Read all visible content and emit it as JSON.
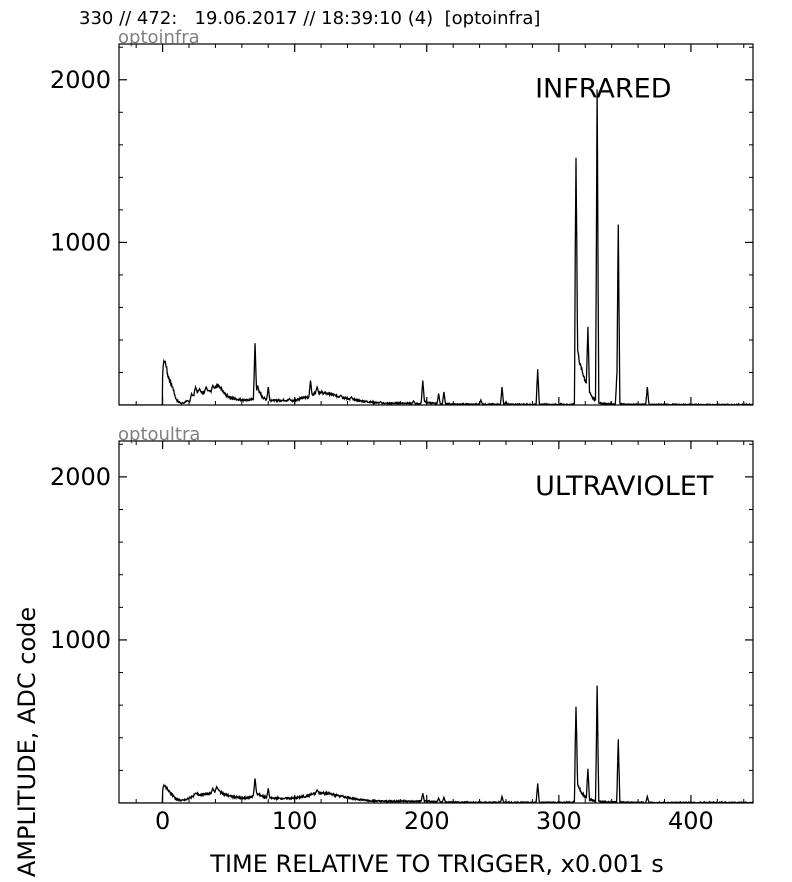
{
  "header": {
    "title": "330 // 472:   19.06.2017 // 18:39:10 (4)  [optoinfra]"
  },
  "chart_data": [
    {
      "type": "line",
      "panel_label": "optoinfra",
      "annotation": "INFRARED",
      "xlim": [
        -33,
        447
      ],
      "ylim": [
        0,
        2220
      ],
      "xticks": [
        0,
        100,
        200,
        300,
        400
      ],
      "yticks": [
        1000,
        2000
      ],
      "baseline": [
        [
          -33,
          0
        ],
        [
          -0.5,
          0
        ],
        [
          0,
          150
        ],
        [
          1,
          240
        ],
        [
          2,
          260
        ],
        [
          3,
          230
        ],
        [
          4,
          180
        ],
        [
          6,
          140
        ],
        [
          8,
          100
        ],
        [
          10,
          40
        ],
        [
          12,
          20
        ],
        [
          14,
          12
        ],
        [
          16,
          10
        ],
        [
          18,
          25
        ],
        [
          20,
          20
        ],
        [
          22,
          40
        ],
        [
          24,
          70
        ],
        [
          26,
          85
        ],
        [
          28,
          80
        ],
        [
          30,
          75
        ],
        [
          33,
          90
        ],
        [
          36,
          80
        ],
        [
          38,
          95
        ],
        [
          40,
          110
        ],
        [
          42,
          115
        ],
        [
          44,
          100
        ],
        [
          46,
          80
        ],
        [
          48,
          60
        ],
        [
          52,
          45
        ],
        [
          56,
          35
        ],
        [
          60,
          32
        ],
        [
          64,
          30
        ],
        [
          68,
          35
        ],
        [
          70,
          55
        ],
        [
          72,
          80
        ],
        [
          74,
          70
        ],
        [
          76,
          45
        ],
        [
          80,
          30
        ],
        [
          86,
          28
        ],
        [
          92,
          30
        ],
        [
          96,
          25
        ],
        [
          100,
          28
        ],
        [
          104,
          40
        ],
        [
          108,
          45
        ],
        [
          112,
          55
        ],
        [
          116,
          80
        ],
        [
          120,
          75
        ],
        [
          126,
          70
        ],
        [
          132,
          55
        ],
        [
          140,
          40
        ],
        [
          150,
          25
        ],
        [
          160,
          15
        ],
        [
          170,
          10
        ],
        [
          180,
          12
        ],
        [
          190,
          10
        ],
        [
          195,
          8
        ],
        [
          198,
          25
        ],
        [
          200,
          15
        ],
        [
          210,
          6
        ],
        [
          220,
          5
        ],
        [
          240,
          4
        ],
        [
          260,
          4
        ],
        [
          280,
          3
        ],
        [
          300,
          3
        ],
        [
          310,
          3
        ],
        [
          312,
          10
        ],
        [
          313,
          430
        ],
        [
          314,
          350
        ],
        [
          316,
          250
        ],
        [
          318,
          200
        ],
        [
          320,
          150
        ],
        [
          322,
          110
        ],
        [
          324,
          70
        ],
        [
          326,
          40
        ],
        [
          328,
          25
        ],
        [
          330,
          15
        ],
        [
          332,
          10
        ],
        [
          336,
          8
        ],
        [
          340,
          6
        ],
        [
          344,
          5
        ],
        [
          346,
          8
        ],
        [
          348,
          4
        ],
        [
          360,
          3
        ],
        [
          380,
          2
        ],
        [
          400,
          2
        ],
        [
          420,
          2
        ],
        [
          447,
          2
        ]
      ],
      "spikes": [
        [
          1,
          270
        ],
        [
          22,
          70
        ],
        [
          25,
          110
        ],
        [
          28,
          100
        ],
        [
          33,
          110
        ],
        [
          35,
          90
        ],
        [
          38,
          120
        ],
        [
          70,
          380
        ],
        [
          72,
          120
        ],
        [
          80,
          110
        ],
        [
          96,
          40
        ],
        [
          112,
          150
        ],
        [
          117,
          110
        ],
        [
          135,
          60
        ],
        [
          143,
          50
        ],
        [
          165,
          20
        ],
        [
          190,
          25
        ],
        [
          197,
          150
        ],
        [
          209,
          70
        ],
        [
          213,
          80
        ],
        [
          241,
          30
        ],
        [
          257,
          110
        ],
        [
          260,
          20
        ],
        [
          284,
          220
        ],
        [
          313,
          1520
        ],
        [
          322,
          480
        ],
        [
          329,
          1940
        ],
        [
          345,
          1110
        ],
        [
          344,
          200
        ],
        [
          367,
          110
        ]
      ]
    },
    {
      "type": "line",
      "panel_label": "optoultra",
      "annotation": "ULTRAVIOLET",
      "xlim": [
        -33,
        447
      ],
      "ylim": [
        0,
        2220
      ],
      "xticks": [
        0,
        100,
        200,
        300,
        400
      ],
      "yticks": [
        1000,
        2000
      ],
      "baseline": [
        [
          -33,
          0
        ],
        [
          -0.5,
          0
        ],
        [
          0,
          60
        ],
        [
          1,
          90
        ],
        [
          2,
          100
        ],
        [
          3,
          95
        ],
        [
          4,
          80
        ],
        [
          6,
          60
        ],
        [
          8,
          45
        ],
        [
          10,
          25
        ],
        [
          14,
          15
        ],
        [
          18,
          20
        ],
        [
          22,
          40
        ],
        [
          26,
          55
        ],
        [
          30,
          50
        ],
        [
          34,
          55
        ],
        [
          38,
          65
        ],
        [
          40,
          75
        ],
        [
          42,
          80
        ],
        [
          44,
          65
        ],
        [
          48,
          50
        ],
        [
          52,
          40
        ],
        [
          56,
          35
        ],
        [
          60,
          30
        ],
        [
          64,
          32
        ],
        [
          68,
          40
        ],
        [
          70,
          60
        ],
        [
          72,
          55
        ],
        [
          76,
          40
        ],
        [
          80,
          30
        ],
        [
          90,
          28
        ],
        [
          100,
          30
        ],
        [
          108,
          40
        ],
        [
          114,
          55
        ],
        [
          118,
          65
        ],
        [
          122,
          60
        ],
        [
          128,
          55
        ],
        [
          136,
          40
        ],
        [
          146,
          25
        ],
        [
          156,
          15
        ],
        [
          170,
          10
        ],
        [
          180,
          12
        ],
        [
          190,
          10
        ],
        [
          200,
          12
        ],
        [
          210,
          5
        ],
        [
          230,
          4
        ],
        [
          260,
          3
        ],
        [
          290,
          3
        ],
        [
          310,
          3
        ],
        [
          312,
          8
        ],
        [
          313,
          180
        ],
        [
          314,
          120
        ],
        [
          316,
          80
        ],
        [
          318,
          55
        ],
        [
          320,
          35
        ],
        [
          324,
          20
        ],
        [
          328,
          12
        ],
        [
          332,
          8
        ],
        [
          340,
          5
        ],
        [
          346,
          6
        ],
        [
          350,
          3
        ],
        [
          380,
          2
        ],
        [
          447,
          2
        ]
      ],
      "spikes": [
        [
          1,
          110
        ],
        [
          25,
          60
        ],
        [
          38,
          90
        ],
        [
          41,
          100
        ],
        [
          70,
          150
        ],
        [
          80,
          90
        ],
        [
          117,
          80
        ],
        [
          197,
          60
        ],
        [
          209,
          30
        ],
        [
          213,
          35
        ],
        [
          257,
          40
        ],
        [
          284,
          120
        ],
        [
          313,
          590
        ],
        [
          322,
          210
        ],
        [
          329,
          720
        ],
        [
          345,
          390
        ],
        [
          367,
          40
        ]
      ]
    }
  ],
  "shared": {
    "xlabel": "TIME RELATIVE TO TRIGGER,   x0.001 s",
    "ylabel": "AMPLITUDE,  ADC code"
  }
}
